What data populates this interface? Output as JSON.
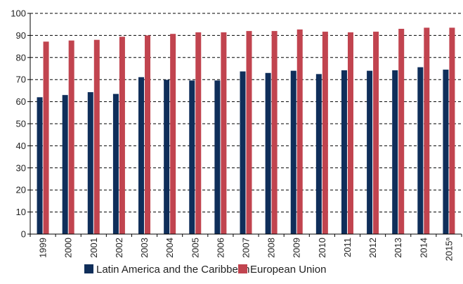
{
  "chart_data": {
    "type": "bar",
    "title": "",
    "xlabel": "",
    "ylabel": "",
    "ylim": [
      0,
      100
    ],
    "yticks": [
      0,
      10,
      20,
      30,
      40,
      50,
      60,
      70,
      80,
      90,
      100
    ],
    "grid": "horizontal-dashed",
    "legend_position": "bottom",
    "categories": [
      "1999",
      "2000",
      "2001",
      "2002",
      "2003",
      "2004",
      "2005",
      "2006",
      "2007",
      "2008",
      "2009",
      "2010",
      "2011",
      "2012",
      "2013",
      "2014",
      "2015a"
    ],
    "series": [
      {
        "name": "Latin America and the Caribbean",
        "color": "#0f2e5a",
        "values": [
          62.0,
          63.0,
          64.3,
          63.5,
          71.1,
          69.9,
          69.6,
          69.6,
          73.7,
          73.0,
          74.0,
          72.5,
          74.2,
          74.0,
          74.2,
          75.6,
          74.5
        ]
      },
      {
        "name": "European Union",
        "color": "#c1444f",
        "values": [
          87.2,
          87.7,
          88.0,
          89.4,
          90.0,
          90.7,
          91.4,
          91.4,
          92.0,
          92.0,
          92.7,
          91.7,
          91.4,
          91.7,
          93.0,
          93.5,
          93.5
        ]
      }
    ]
  }
}
